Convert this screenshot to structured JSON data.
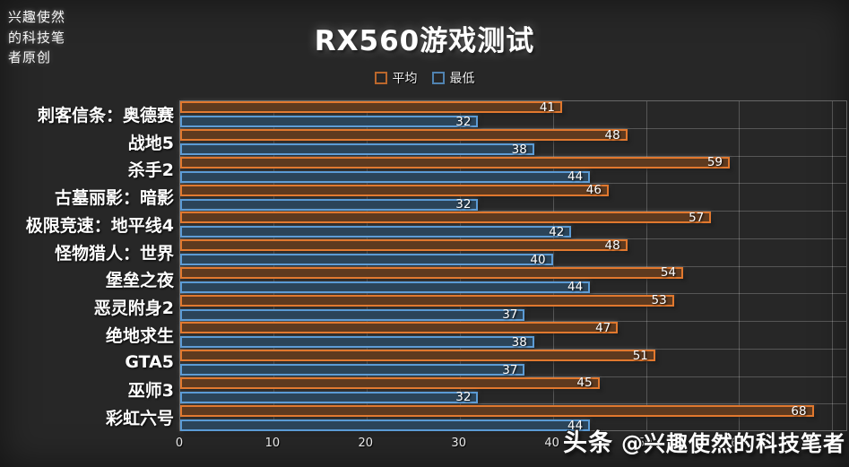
{
  "watermark_top_lines": [
    "兴趣使然",
    "的科技笔",
    "者原创"
  ],
  "watermark_bottom": {
    "bold": "头条",
    "rest": "@兴趣使然的科技笔者"
  },
  "chart_data": {
    "type": "bar",
    "orientation": "horizontal",
    "title": "RX560游戏测试",
    "categories": [
      "刺客信条：奥德赛",
      "战地5",
      "杀手2",
      "古墓丽影：暗影",
      "极限竞速：地平线4",
      "怪物猎人：世界",
      "堡垒之夜",
      "恶灵附身2",
      "绝地求生",
      "GTA5",
      "巫师3",
      "彩虹六号"
    ],
    "series": [
      {
        "name": "平均",
        "color": "#e1782e",
        "fill": "#5e3a1f",
        "values": [
          41,
          48,
          59,
          46,
          57,
          48,
          54,
          53,
          47,
          51,
          45,
          68
        ]
      },
      {
        "name": "最低",
        "color": "#5b9bd5",
        "fill": "#2b4459",
        "values": [
          32,
          38,
          44,
          32,
          42,
          40,
          44,
          37,
          38,
          37,
          32,
          44
        ]
      }
    ],
    "xlabel": "",
    "ylabel": "",
    "xlim": [
      0,
      70
    ],
    "xticks": [
      0,
      10,
      20,
      30,
      40,
      50,
      60,
      70
    ],
    "grid": true,
    "legend_position": "top",
    "background": "#272727",
    "label_color": "#ffffff"
  }
}
